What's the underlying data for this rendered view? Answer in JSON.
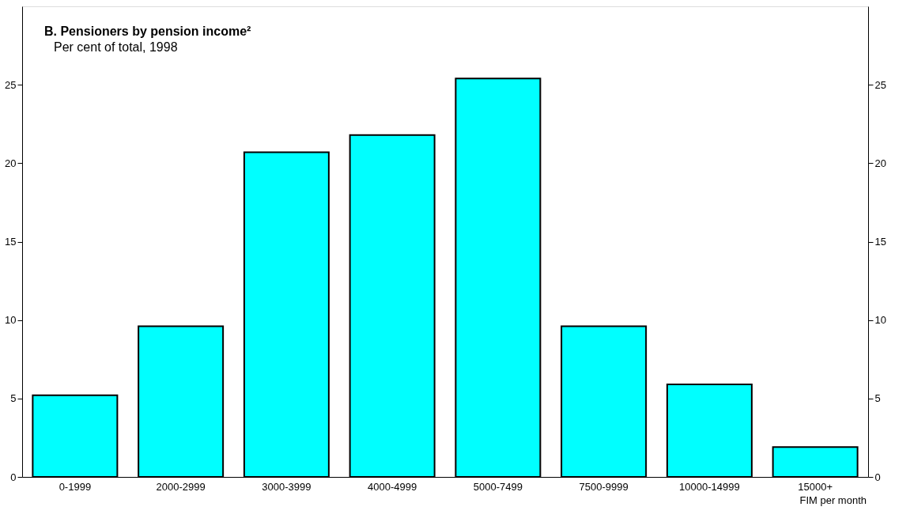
{
  "chart_data": {
    "type": "bar",
    "title": "B.  Pensioners by pension income²",
    "subtitle": "Per cent of total, 1998",
    "categories": [
      "0-1999",
      "2000-2999",
      "3000-3999",
      "4000-4999",
      "5000-7499",
      "7500-9999",
      "10000-14999",
      "15000+"
    ],
    "values": [
      5.2,
      9.6,
      20.7,
      21.8,
      25.4,
      9.6,
      5.9,
      1.9
    ],
    "color": "#00ffff",
    "ylim": [
      0,
      30
    ],
    "yticks": [
      0,
      5,
      10,
      15,
      20,
      25
    ],
    "y2lim": [
      0,
      30
    ],
    "y2ticks": [
      0,
      5,
      10,
      15,
      20,
      25
    ],
    "annotations": [
      "FIM per month"
    ],
    "grid": false
  }
}
